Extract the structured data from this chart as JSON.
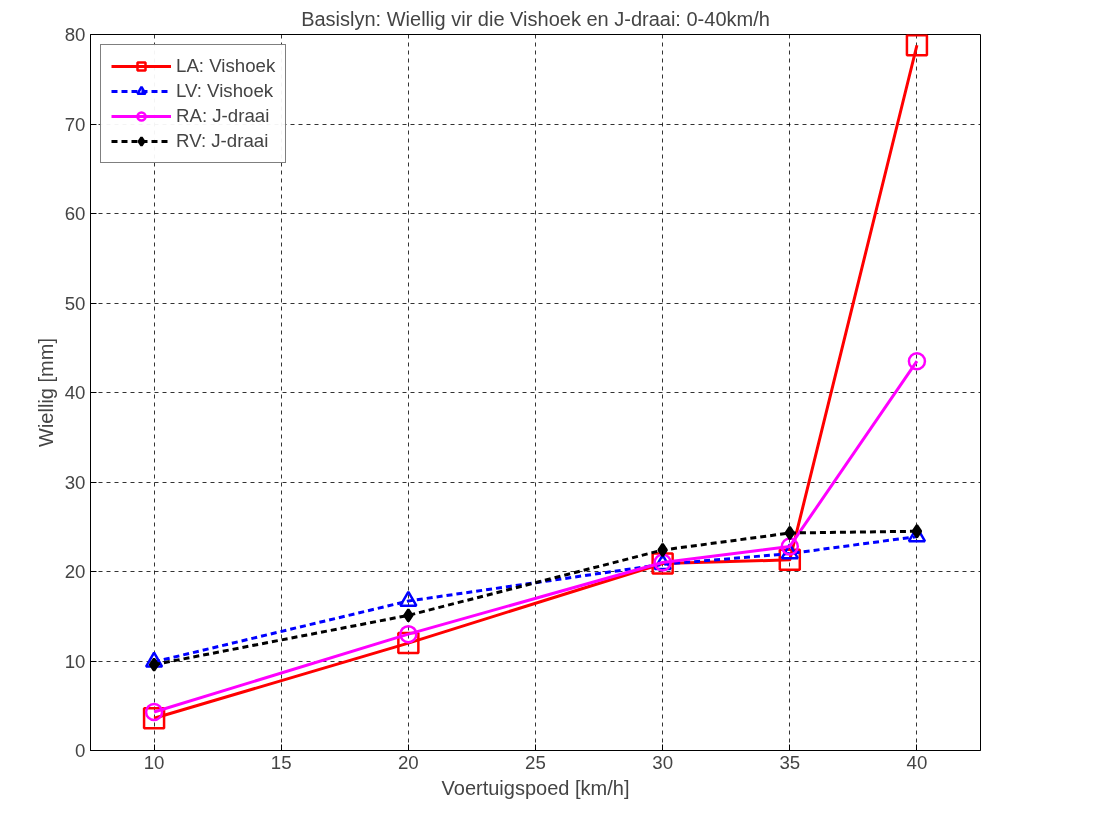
{
  "chart_data": {
    "type": "line",
    "title": "Basislyn: Wiellig vir die Vishoek en J-draai: 0-40km/h",
    "xlabel": "Voertuigspoed [km/h]",
    "ylabel": "Wiellig [mm]",
    "x": [
      10,
      20,
      30,
      35,
      40
    ],
    "series": [
      {
        "name": "LA: Vishoek",
        "color": "#ff0000",
        "marker": "square",
        "line_style": "solid",
        "values": [
          3.6,
          12,
          20.9,
          21.3,
          78.8
        ]
      },
      {
        "name": "LV: Vishoek",
        "color": "#0000ff",
        "marker": "triangle",
        "line_style": "dashed",
        "values": [
          9.9,
          16.7,
          20.8,
          22,
          23.9
        ]
      },
      {
        "name": "RA: J-draai",
        "color": "#ff00ff",
        "marker": "circle",
        "line_style": "solid",
        "values": [
          4.3,
          13,
          21,
          22.8,
          43.5
        ]
      },
      {
        "name": "RV: J-draai",
        "color": "#000000",
        "marker": "diamond",
        "line_style": "dashed",
        "values": [
          9.6,
          15.1,
          22.4,
          24.3,
          24.5
        ]
      }
    ],
    "xlim": [
      7.5,
      42.5
    ],
    "xticks": [
      10,
      15,
      20,
      25,
      30,
      35,
      40
    ],
    "ylim": [
      0,
      80
    ],
    "yticks": [
      0,
      10,
      20,
      30,
      40,
      50,
      60,
      70,
      80
    ],
    "grid": true,
    "legend": "top left"
  }
}
